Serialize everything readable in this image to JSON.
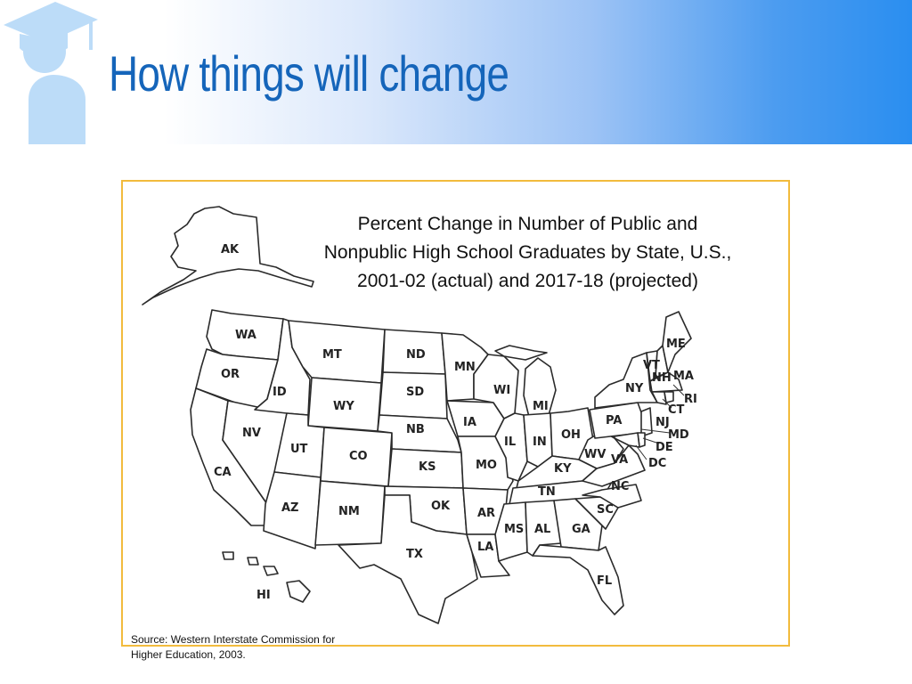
{
  "slide": {
    "title": "How things will change"
  },
  "map": {
    "title_line1": "Percent Change in Number of Public and",
    "title_line2": "Nonpublic High School Graduates by State, U.S.,",
    "title_line3": "2001-02 (actual) and 2017-18 (projected)",
    "source_line1": "Source: Western Interstate Commission for",
    "source_line2": "Higher Education, 2003.",
    "frame_color": "#f2bb3d",
    "states": [
      "AK",
      "HI",
      "WA",
      "OR",
      "CA",
      "NV",
      "ID",
      "MT",
      "WY",
      "UT",
      "CO",
      "AZ",
      "NM",
      "ND",
      "SD",
      "NB",
      "KS",
      "OK",
      "TX",
      "MN",
      "IA",
      "MO",
      "AR",
      "LA",
      "WI",
      "IL",
      "MI",
      "IN",
      "OH",
      "KY",
      "TN",
      "MS",
      "AL",
      "GA",
      "FL",
      "SC",
      "NC",
      "VA",
      "WV",
      "PA",
      "NY",
      "VT",
      "NH",
      "ME",
      "MA",
      "RI",
      "CT",
      "NJ",
      "DE",
      "MD",
      "DC"
    ]
  },
  "colors": {
    "title": "#1565ba",
    "header_gradient_end": "#2a8ef0",
    "logo": "#bcdcf8"
  },
  "icons": {
    "logo": "graduate-cap-person-icon"
  }
}
